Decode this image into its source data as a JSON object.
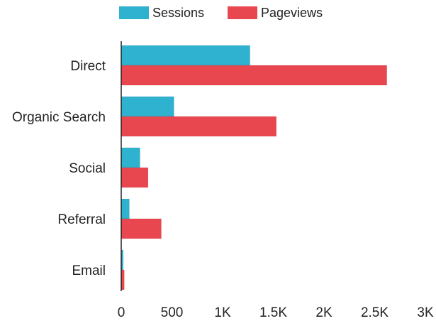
{
  "chart_data": {
    "type": "bar",
    "orientation": "horizontal",
    "categories": [
      "Direct",
      "Organic Search",
      "Social",
      "Referral",
      "Email"
    ],
    "series": [
      {
        "name": "Sessions",
        "values": [
          1270,
          520,
          185,
          80,
          20
        ],
        "color": "#2fb2cf"
      },
      {
        "name": "Pageviews",
        "values": [
          2620,
          1530,
          265,
          395,
          30
        ],
        "color": "#e8474f"
      }
    ],
    "xlim": [
      0,
      3000
    ],
    "xticks": [
      {
        "value": 0,
        "label": "0"
      },
      {
        "value": 500,
        "label": "500"
      },
      {
        "value": 1000,
        "label": "1K"
      },
      {
        "value": 1500,
        "label": "1.5K"
      },
      {
        "value": 2000,
        "label": "2K"
      },
      {
        "value": 2500,
        "label": "2.5K"
      },
      {
        "value": 3000,
        "label": "3K"
      }
    ],
    "grid": false,
    "legend": {
      "position": "top"
    },
    "title": "",
    "xlabel": "",
    "ylabel": ""
  }
}
